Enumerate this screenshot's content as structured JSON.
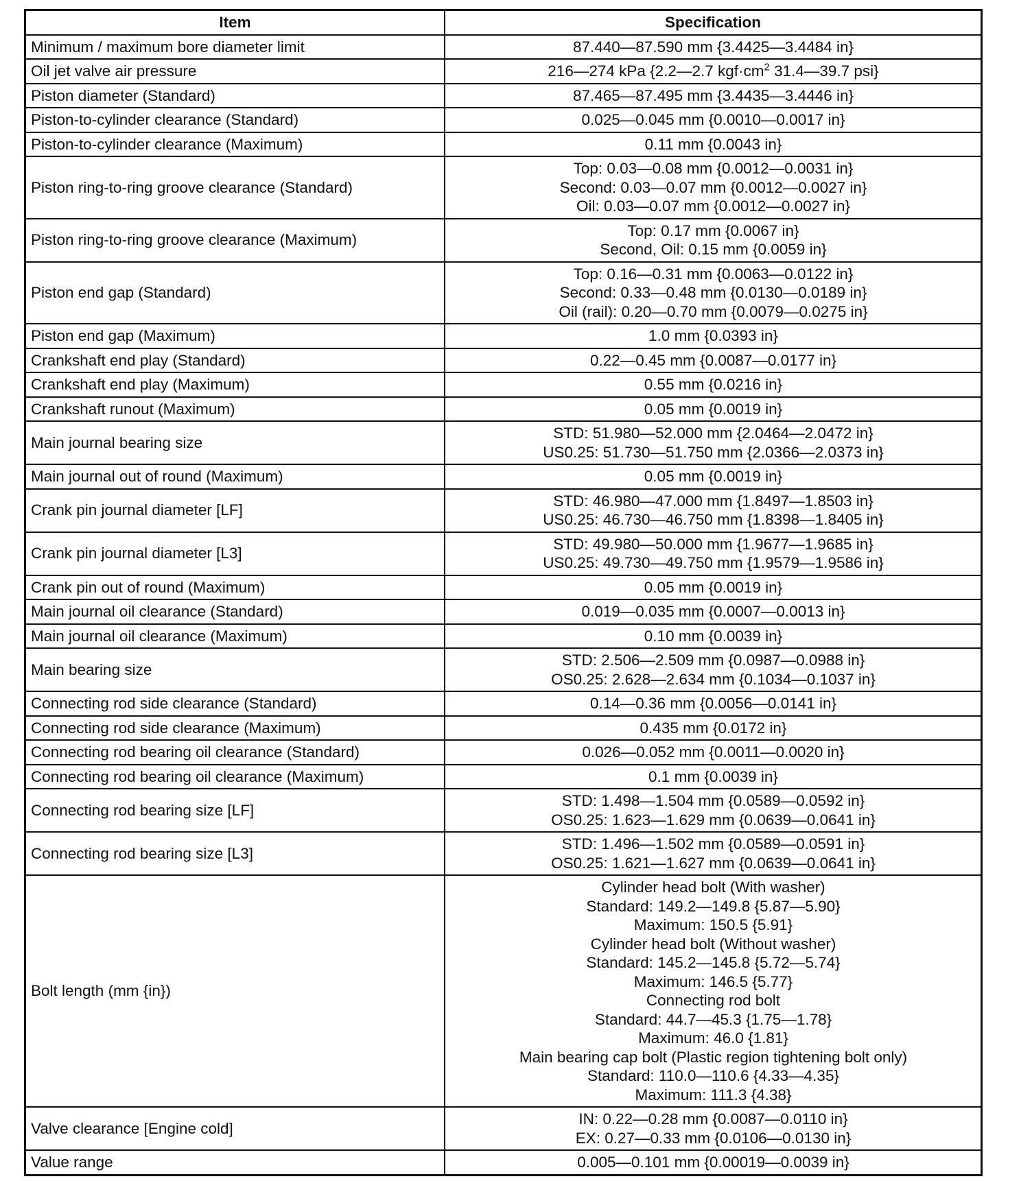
{
  "headers": {
    "item": "Item",
    "specification": "Specification"
  },
  "rows": [
    {
      "item": "Minimum / maximum bore diameter limit",
      "spec": [
        "87.440—87.590 mm {3.4425—3.4484 in}"
      ]
    },
    {
      "item": "Oil jet valve air pressure",
      "spec_sup": {
        "before": "216—274 kPa {2.2—2.7 kgf·cm",
        "sup": "2",
        "after": " 31.4—39.7 psi}"
      }
    },
    {
      "item": "Piston diameter (Standard)",
      "spec": [
        "87.465—87.495 mm {3.4435—3.4446 in}"
      ]
    },
    {
      "item": "Piston-to-cylinder clearance (Standard)",
      "spec": [
        "0.025—0.045 mm {0.0010—0.0017 in}"
      ]
    },
    {
      "item": "Piston-to-cylinder clearance (Maximum)",
      "spec": [
        "0.11 mm {0.0043 in}"
      ]
    },
    {
      "item": "Piston ring-to-ring groove clearance (Standard)",
      "spec": [
        "Top: 0.03—0.08 mm {0.0012—0.0031 in}",
        "Second: 0.03—0.07 mm {0.0012—0.0027 in}",
        "Oil: 0.03—0.07 mm {0.0012—0.0027 in}"
      ]
    },
    {
      "item": "Piston ring-to-ring groove clearance (Maximum)",
      "spec": [
        "Top: 0.17 mm {0.0067 in}",
        "Second, Oil: 0.15 mm {0.0059 in}"
      ]
    },
    {
      "item": "Piston end gap (Standard)",
      "spec": [
        "Top: 0.16—0.31 mm {0.0063—0.0122 in}",
        "Second: 0.33—0.48 mm {0.0130—0.0189 in}",
        "Oil (rail): 0.20—0.70 mm {0.0079—0.0275 in}"
      ]
    },
    {
      "item": "Piston end gap (Maximum)",
      "spec": [
        "1.0 mm {0.0393 in}"
      ]
    },
    {
      "item": "Crankshaft end play (Standard)",
      "spec": [
        "0.22—0.45 mm {0.0087—0.0177 in}"
      ]
    },
    {
      "item": "Crankshaft end play (Maximum)",
      "spec": [
        "0.55 mm {0.0216 in}"
      ]
    },
    {
      "item": "Crankshaft runout (Maximum)",
      "spec": [
        "0.05 mm {0.0019 in}"
      ]
    },
    {
      "item": "Main journal bearing size",
      "spec": [
        "STD: 51.980—52.000 mm {2.0464—2.0472 in}",
        "US0.25: 51.730—51.750 mm {2.0366—2.0373 in}"
      ]
    },
    {
      "item": "Main journal out of round (Maximum)",
      "spec": [
        "0.05 mm {0.0019 in}"
      ]
    },
    {
      "item": "Crank pin journal diameter [LF]",
      "spec": [
        "STD: 46.980—47.000 mm {1.8497—1.8503 in}",
        "US0.25: 46.730—46.750 mm {1.8398—1.8405 in}"
      ]
    },
    {
      "item": "Crank pin journal diameter [L3]",
      "spec": [
        "STD: 49.980—50.000 mm {1.9677—1.9685 in}",
        "US0.25: 49.730—49.750 mm {1.9579—1.9586 in}"
      ]
    },
    {
      "item": "Crank pin out of round (Maximum)",
      "spec": [
        "0.05 mm {0.0019 in}"
      ]
    },
    {
      "item": "Main journal oil clearance (Standard)",
      "spec": [
        "0.019—0.035 mm {0.0007—0.0013 in}"
      ]
    },
    {
      "item": "Main journal oil clearance (Maximum)",
      "spec": [
        "0.10 mm {0.0039 in}"
      ]
    },
    {
      "item": "Main bearing size",
      "spec": [
        "STD: 2.506—2.509 mm {0.0987—0.0988 in}",
        "OS0.25: 2.628—2.634 mm {0.1034—0.1037 in}"
      ]
    },
    {
      "item": "Connecting rod side clearance (Standard)",
      "spec": [
        "0.14—0.36 mm {0.0056—0.0141 in}"
      ]
    },
    {
      "item": "Connecting rod side clearance (Maximum)",
      "spec": [
        "0.435 mm {0.0172 in}"
      ]
    },
    {
      "item": "Connecting rod bearing oil clearance (Standard)",
      "spec": [
        "0.026—0.052 mm {0.0011—0.0020 in}"
      ]
    },
    {
      "item": "Connecting rod bearing oil clearance (Maximum)",
      "spec": [
        "0.1 mm {0.0039 in}"
      ]
    },
    {
      "item": "Connecting rod bearing size [LF]",
      "spec": [
        "STD: 1.498—1.504 mm {0.0589—0.0592 in}",
        "OS0.25: 1.623—1.629 mm {0.0639—0.0641 in}"
      ]
    },
    {
      "item": "Connecting rod bearing size [L3]",
      "spec": [
        "STD: 1.496—1.502 mm {0.0589—0.0591 in}",
        "OS0.25: 1.621—1.627 mm {0.0639—0.0641 in}"
      ]
    },
    {
      "item": "Bolt length (mm {in})",
      "spec": [
        "Cylinder head bolt (With washer)",
        "Standard: 149.2—149.8 {5.87—5.90}",
        "Maximum: 150.5 {5.91}",
        "Cylinder head bolt (Without washer)",
        "Standard: 145.2—145.8 {5.72—5.74}",
        "Maximum: 146.5 {5.77}",
        "Connecting rod bolt",
        "Standard: 44.7—45.3 {1.75—1.78}",
        "Maximum: 46.0 {1.81}",
        "Main bearing cap bolt (Plastic region tightening bolt only)",
        "Standard: 110.0—110.6 {4.33—4.35}",
        "Maximum: 111.3 {4.38}"
      ]
    },
    {
      "item": "Valve clearance [Engine cold]",
      "spec": [
        "IN: 0.22—0.28 mm {0.0087—0.0110 in}",
        "EX: 0.27—0.33 mm {0.0106—0.0130 in}"
      ]
    },
    {
      "item": "Value range",
      "spec": [
        "0.005—0.101 mm {0.00019—0.0039 in}"
      ]
    }
  ]
}
